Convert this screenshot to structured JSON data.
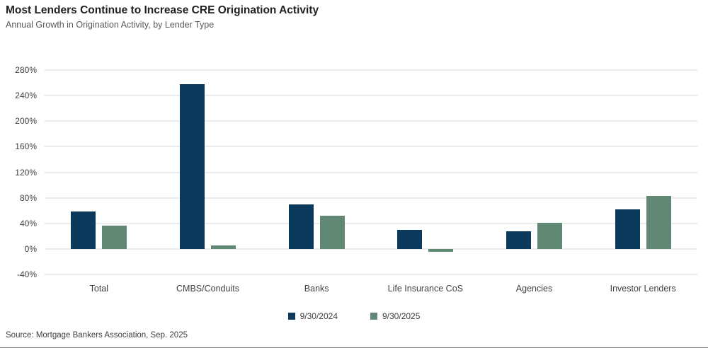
{
  "header": {
    "title": "Most Lenders Continue to Increase CRE Origination Activity",
    "subtitle": "Annual Growth in Origination Activity, by Lender Type"
  },
  "footer": {
    "source": "Source: Mortgage Bankers Association, Sep. 2025"
  },
  "colors": {
    "series_2024": "#0c3a5d",
    "series_2025": "#618875",
    "gridline": "#d9d9d9",
    "text": "#404040"
  },
  "chart_data": {
    "type": "bar",
    "title": "Most Lenders Continue to Increase CRE Origination Activity",
    "subtitle": "Annual Growth in Origination Activity, by Lender Type",
    "categories": [
      "Total",
      "CMBS/Conduits",
      "Banks",
      "Life Insurance CoS",
      "Agencies",
      "Investor Lenders"
    ],
    "series": [
      {
        "name": "9/30/2024",
        "color": "#0c3a5d",
        "values": [
          59,
          258,
          70,
          30,
          28,
          62
        ]
      },
      {
        "name": "9/30/2025",
        "color": "#618875",
        "values": [
          36,
          5,
          52,
          -4,
          41,
          83
        ]
      }
    ],
    "ylabel": "",
    "xlabel": "",
    "ylim": [
      -40,
      280
    ],
    "ytick_step": 40,
    "ytick_suffix": "%",
    "grid": true,
    "legend_position": "bottom"
  }
}
